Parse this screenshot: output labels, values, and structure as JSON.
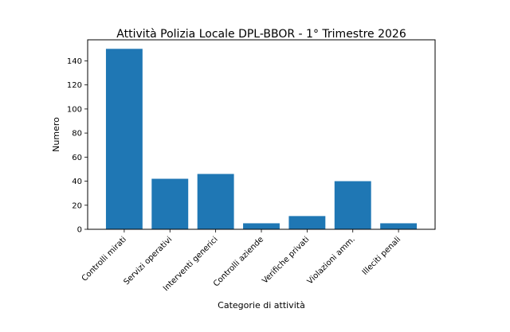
{
  "chart_data": {
    "type": "bar",
    "title": "Attività Polizia Locale DPL-BBOR - 1° Trimestre 2026",
    "xlabel": "Categorie di attività",
    "ylabel": "Numero",
    "categories": [
      "Controlli mirati",
      "Servizi operativi",
      "Interventi generici",
      "Controlli aziende",
      "Verifiche privati",
      "Violazioni amm.",
      "Illeciti penali"
    ],
    "values": [
      150,
      42,
      46,
      5,
      11,
      40,
      5
    ],
    "ylim": [
      0,
      157.5
    ],
    "yticks": [
      0,
      20,
      40,
      60,
      80,
      100,
      120,
      140
    ],
    "bar_color": "#1f77b4",
    "grid": false,
    "legend": "none"
  }
}
